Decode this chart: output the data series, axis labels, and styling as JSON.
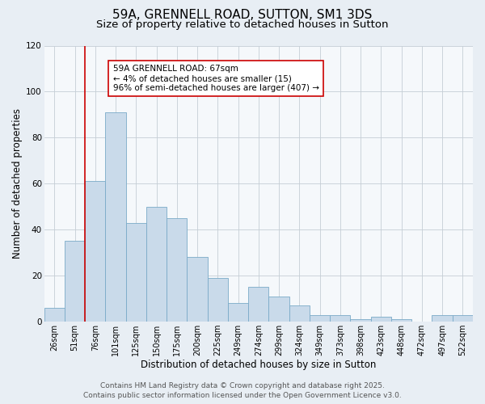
{
  "title_line1": "59A, GRENNELL ROAD, SUTTON, SM1 3DS",
  "title_line2": "Size of property relative to detached houses in Sutton",
  "xlabel": "Distribution of detached houses by size in Sutton",
  "ylabel": "Number of detached properties",
  "categories": [
    "26sqm",
    "51sqm",
    "76sqm",
    "101sqm",
    "125sqm",
    "150sqm",
    "175sqm",
    "200sqm",
    "225sqm",
    "249sqm",
    "274sqm",
    "299sqm",
    "324sqm",
    "349sqm",
    "373sqm",
    "398sqm",
    "423sqm",
    "448sqm",
    "472sqm",
    "497sqm",
    "522sqm"
  ],
  "values": [
    6,
    35,
    61,
    91,
    43,
    50,
    45,
    28,
    19,
    8,
    15,
    11,
    7,
    3,
    3,
    1,
    2,
    1,
    0,
    3,
    3
  ],
  "bar_color": "#c9daea",
  "bar_edge_color": "#7aaac8",
  "red_line_index": 2,
  "red_line_color": "#cc0000",
  "annotation_text": "59A GRENNELL ROAD: 67sqm\n← 4% of detached houses are smaller (15)\n96% of semi-detached houses are larger (407) →",
  "annotation_box_facecolor": "#ffffff",
  "annotation_box_edgecolor": "#cc0000",
  "ylim": [
    0,
    120
  ],
  "yticks": [
    0,
    20,
    40,
    60,
    80,
    100,
    120
  ],
  "footer_line1": "Contains HM Land Registry data © Crown copyright and database right 2025.",
  "footer_line2": "Contains public sector information licensed under the Open Government Licence v3.0.",
  "bg_color": "#e8eef4",
  "plot_bg_color": "#f5f8fb",
  "grid_color": "#c5cdd5",
  "title_fontsize": 11,
  "subtitle_fontsize": 9.5,
  "tick_fontsize": 7,
  "label_fontsize": 8.5,
  "footer_fontsize": 6.5,
  "annotation_fontsize": 7.5
}
